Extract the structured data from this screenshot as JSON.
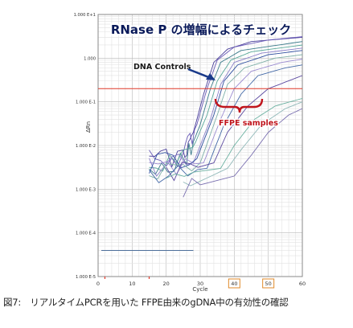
{
  "chart_data": {
    "type": "line",
    "title": "RNase P の増幅によるチェック",
    "xlabel": "Cycle",
    "ylabel": "ΔRn",
    "xlim": [
      0,
      60
    ],
    "ylim_log10": [
      -5,
      1
    ],
    "y_scale": "log",
    "grid": true,
    "x_ticks": [
      "0",
      "10",
      "20",
      "30",
      "40",
      "50",
      "60"
    ],
    "x_highlighted_ticks": [
      "40",
      "50"
    ],
    "y_ticks": [
      "1.000 E-5",
      "1.000 E-4",
      "1.000 E-3",
      "1.000 E-2",
      "1.000 E-1",
      "1.000",
      "1.000 E+1"
    ],
    "threshold": 0.2,
    "annotations": {
      "dna_controls": "DNA Controls",
      "ffpe_samples": "FFPE samples"
    },
    "colors": {
      "threshold": "#e03a2a",
      "title_text": "#0a1a5a",
      "ffpe_text": "#c0141c",
      "arrow": "#1a3a8a",
      "highlight_box": "#e08a2a"
    },
    "series": [
      {
        "values": [
          [
            15,
            0.004
          ],
          [
            25,
            0.006
          ],
          [
            28,
            0.02
          ],
          [
            31,
            0.15
          ],
          [
            34,
            0.8
          ],
          [
            38,
            1.6
          ],
          [
            45,
            2.4
          ],
          [
            60,
            3.0
          ]
        ]
      },
      {
        "values": [
          [
            15,
            0.005
          ],
          [
            25,
            0.006
          ],
          [
            29,
            0.03
          ],
          [
            32,
            0.2
          ],
          [
            35,
            0.9
          ],
          [
            40,
            1.8
          ],
          [
            50,
            2.6
          ],
          [
            60,
            3.1
          ]
        ]
      },
      {
        "values": [
          [
            15,
            0.003
          ],
          [
            26,
            0.005
          ],
          [
            30,
            0.03
          ],
          [
            33,
            0.2
          ],
          [
            36,
            0.8
          ],
          [
            42,
            1.5
          ],
          [
            60,
            2.4
          ]
        ]
      },
      {
        "values": [
          [
            15,
            0.004
          ],
          [
            27,
            0.006
          ],
          [
            32,
            0.05
          ],
          [
            35,
            0.3
          ],
          [
            39,
            0.9
          ],
          [
            45,
            1.4
          ],
          [
            60,
            2.0
          ]
        ]
      },
      {
        "values": [
          [
            15,
            0.003
          ],
          [
            28,
            0.004
          ],
          [
            33,
            0.04
          ],
          [
            36,
            0.25
          ],
          [
            40,
            0.8
          ],
          [
            48,
            1.3
          ],
          [
            60,
            1.7
          ]
        ]
      },
      {
        "values": [
          [
            15,
            0.004
          ],
          [
            29,
            0.005
          ],
          [
            34,
            0.05
          ],
          [
            37,
            0.3
          ],
          [
            41,
            0.7
          ],
          [
            50,
            1.2
          ],
          [
            60,
            1.5
          ]
        ]
      },
      {
        "values": [
          [
            15,
            0.002
          ],
          [
            30,
            0.004
          ],
          [
            35,
            0.05
          ],
          [
            38,
            0.25
          ],
          [
            43,
            0.6
          ],
          [
            52,
            1.0
          ],
          [
            60,
            1.2
          ]
        ]
      },
      {
        "values": [
          [
            15,
            0.003
          ],
          [
            31,
            0.004
          ],
          [
            36,
            0.04
          ],
          [
            40,
            0.2
          ],
          [
            45,
            0.5
          ],
          [
            54,
            0.8
          ],
          [
            60,
            0.95
          ]
        ]
      },
      {
        "values": [
          [
            15,
            0.002
          ],
          [
            32,
            0.003
          ],
          [
            37,
            0.03
          ],
          [
            42,
            0.15
          ],
          [
            47,
            0.4
          ],
          [
            55,
            0.6
          ],
          [
            60,
            0.7
          ]
        ]
      },
      {
        "values": [
          [
            20,
            0.002
          ],
          [
            34,
            0.004
          ],
          [
            38,
            0.02
          ],
          [
            44,
            0.08
          ],
          [
            50,
            0.2
          ],
          [
            60,
            0.4
          ]
        ]
      },
      {
        "values": [
          [
            20,
            0.002
          ],
          [
            36,
            0.003
          ],
          [
            40,
            0.01
          ],
          [
            46,
            0.04
          ],
          [
            52,
            0.08
          ],
          [
            60,
            0.12
          ]
        ]
      },
      {
        "values": [
          [
            25,
            0.001
          ],
          [
            38,
            0.003
          ],
          [
            42,
            0.008
          ],
          [
            48,
            0.03
          ],
          [
            55,
            0.07
          ],
          [
            60,
            0.1
          ]
        ]
      },
      {
        "values": [
          [
            25,
            0.001
          ],
          [
            40,
            0.002
          ],
          [
            45,
            0.006
          ],
          [
            50,
            0.02
          ],
          [
            56,
            0.05
          ],
          [
            60,
            0.07
          ]
        ]
      }
    ]
  },
  "caption": "図7:　リアルタイムPCRを用いた FFPE由来のgDNA中の有効性の確認"
}
